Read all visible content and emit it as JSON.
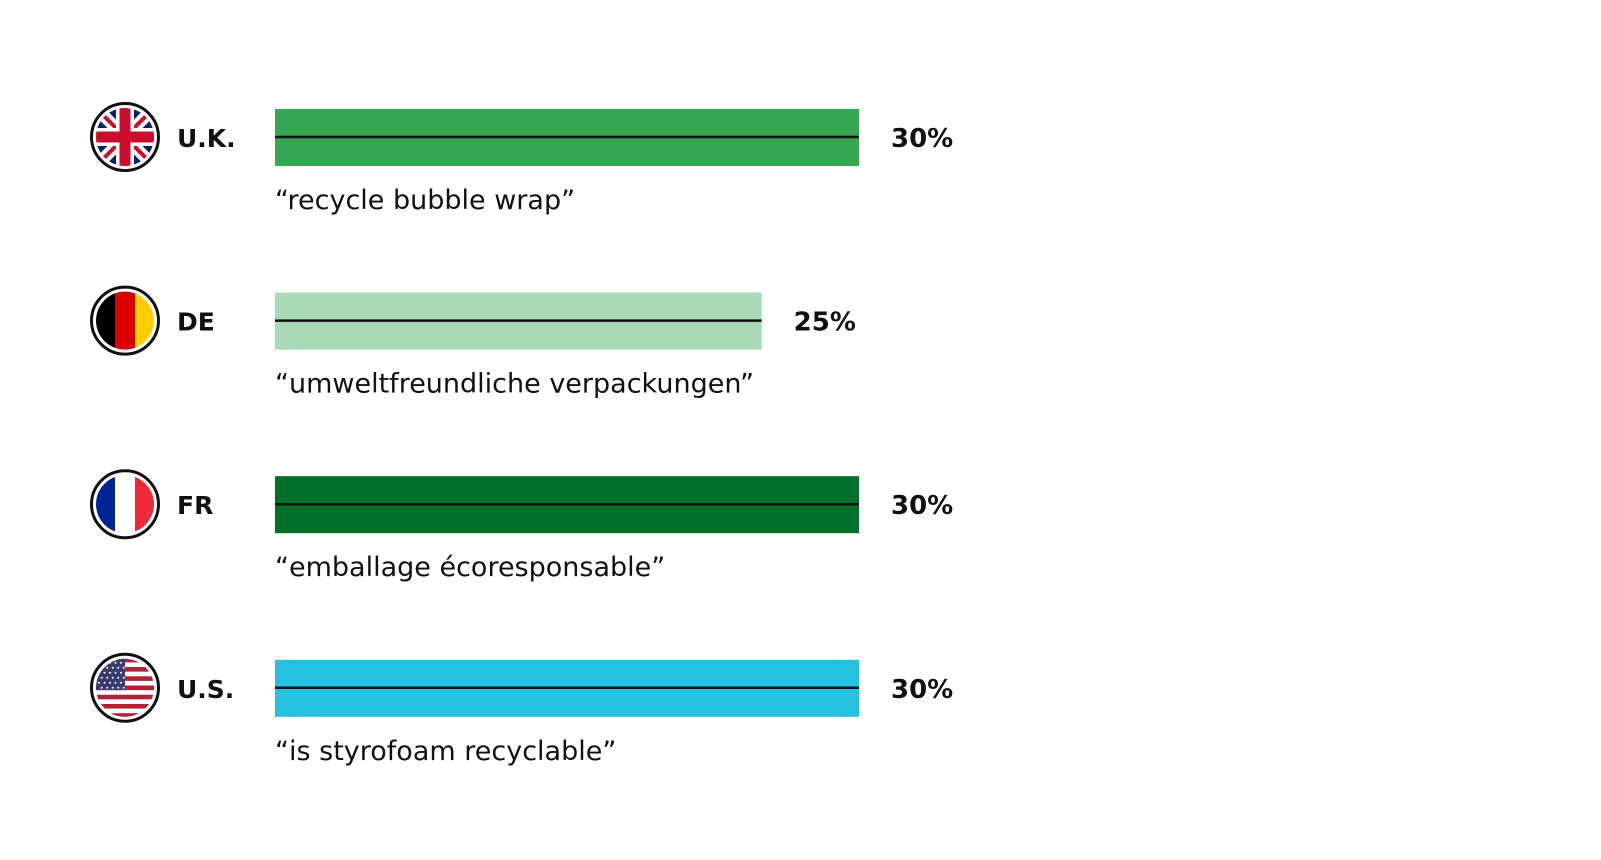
{
  "chart_data": {
    "type": "bar",
    "orientation": "horizontal",
    "unit": "%",
    "xlim": [
      0,
      30
    ],
    "grid": false,
    "categories": [
      "U.K.",
      "DE",
      "FR",
      "U.S."
    ],
    "values": [
      30,
      25,
      30,
      30
    ],
    "value_labels": [
      "30%",
      "25%",
      "30%",
      "30%"
    ],
    "queries": [
      "“recycle bubble wrap”",
      "“umweltfreundliche verpackungen”",
      "“emballage écoresponsable”",
      "“is styrofoam recyclable”"
    ],
    "flags": [
      "uk-flag-icon",
      "germany-flag-icon",
      "france-flag-icon",
      "us-flag-icon"
    ],
    "colors": [
      "#34a853",
      "#a8dab5",
      "#00702b",
      "#24c1e0"
    ]
  }
}
